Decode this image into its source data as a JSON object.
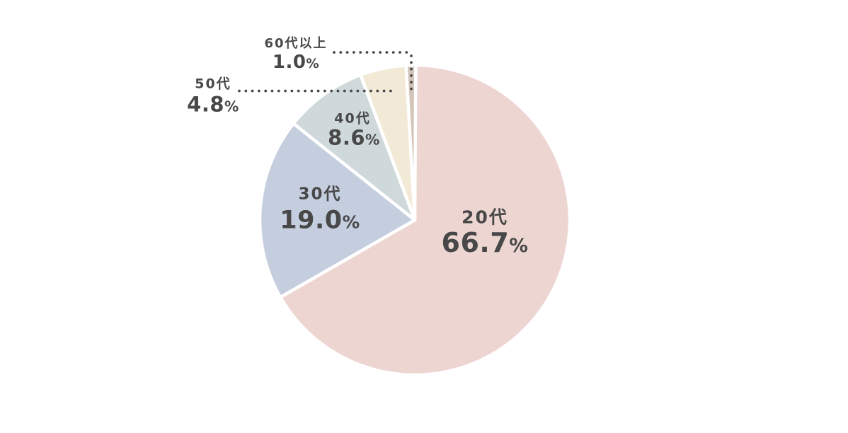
{
  "page": {
    "background_color": "#ffffff"
  },
  "chart_data": {
    "type": "pie",
    "categories": [
      "20代",
      "30代",
      "40代",
      "50代",
      "60代以上"
    ],
    "values": [
      66.7,
      19.0,
      8.6,
      4.8,
      1.0
    ],
    "value_labels": [
      "66.7",
      "19.0",
      "8.6",
      "4.8",
      "1.0"
    ],
    "unit": "%",
    "colors": [
      "#edd6d2",
      "#c4cedf",
      "#cfd8da",
      "#f2ead6",
      "#d3c4b9"
    ],
    "slice_gap_color": "#ffffff",
    "label_color": "#484848",
    "start_angle_deg": 0,
    "direction": "clockwise",
    "legend": "none",
    "leader_lines": "dotted",
    "inside_labels": [
      "20代",
      "30代",
      "40代"
    ],
    "outside_labels": [
      "50代",
      "60代以上"
    ]
  }
}
